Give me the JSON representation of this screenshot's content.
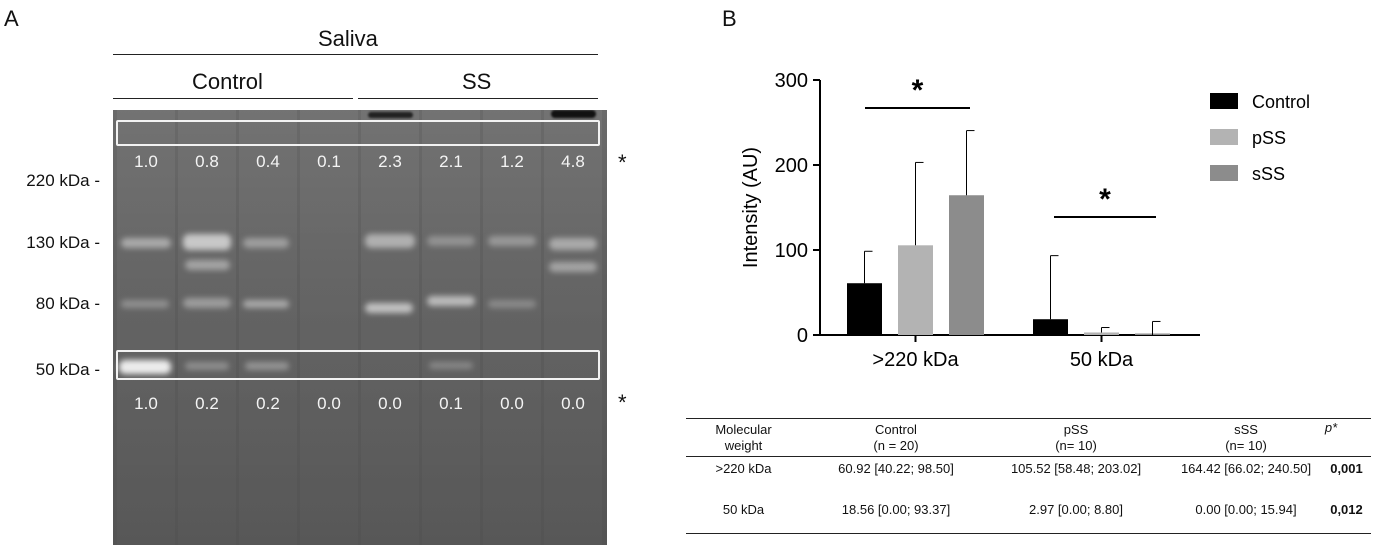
{
  "panel_a": {
    "label": "A",
    "sample_group": "Saliva",
    "groups": [
      "Control",
      "SS"
    ],
    "markers": [
      "220 kDa -",
      "130 kDa -",
      "80 kDa -",
      "50 kDa -"
    ],
    "densities_top": [
      "1.0",
      "0.8",
      "0.4",
      "0.1",
      "2.3",
      "2.1",
      "1.2",
      "4.8"
    ],
    "densities_bottom": [
      "1.0",
      "0.2",
      "0.2",
      "0.0",
      "0.0",
      "0.1",
      "0.0",
      "0.0"
    ],
    "star": "*"
  },
  "panel_b": {
    "label": "B",
    "star": "*"
  },
  "chart_data": {
    "type": "bar",
    "categories": [
      ">220 kDa",
      "50 kDa"
    ],
    "ylabel": "Intensity (AU)",
    "ylim": [
      0,
      300
    ],
    "yticks": [
      "0",
      "100",
      "200",
      "300"
    ],
    "legend_position": "top-right",
    "series": [
      {
        "name": "Control",
        "color": "#000000",
        "values": [
          60.92,
          18.56
        ],
        "upper": [
          98.5,
          93.37
        ]
      },
      {
        "name": "pSS",
        "color": "#b3b3b3",
        "values": [
          105.52,
          2.97
        ],
        "upper": [
          203.02,
          8.8
        ]
      },
      {
        "name": "sSS",
        "color": "#8c8c8c",
        "values": [
          164.42,
          0.0
        ],
        "upper": [
          240.5,
          15.94
        ]
      }
    ],
    "significance": [
      "*",
      "*"
    ]
  },
  "table": {
    "headers": [
      [
        "Molecular",
        "weight"
      ],
      [
        "Control",
        "(n = 20)"
      ],
      [
        "pSS",
        "(n= 10)"
      ],
      [
        "sSS",
        "(n= 10)"
      ],
      [
        "p*",
        ""
      ]
    ],
    "rows": [
      [
        ">220 kDa",
        "60.92 [40.22; 98.50]",
        "105.52 [58.48; 203.02]",
        "164.42 [66.02; 240.50]",
        "0,001"
      ],
      [
        "50 kDa",
        "18.56 [0.00; 93.37]",
        "2.97 [0.00; 8.80]",
        "0.00 [0.00; 15.94]",
        "0,012"
      ]
    ]
  }
}
